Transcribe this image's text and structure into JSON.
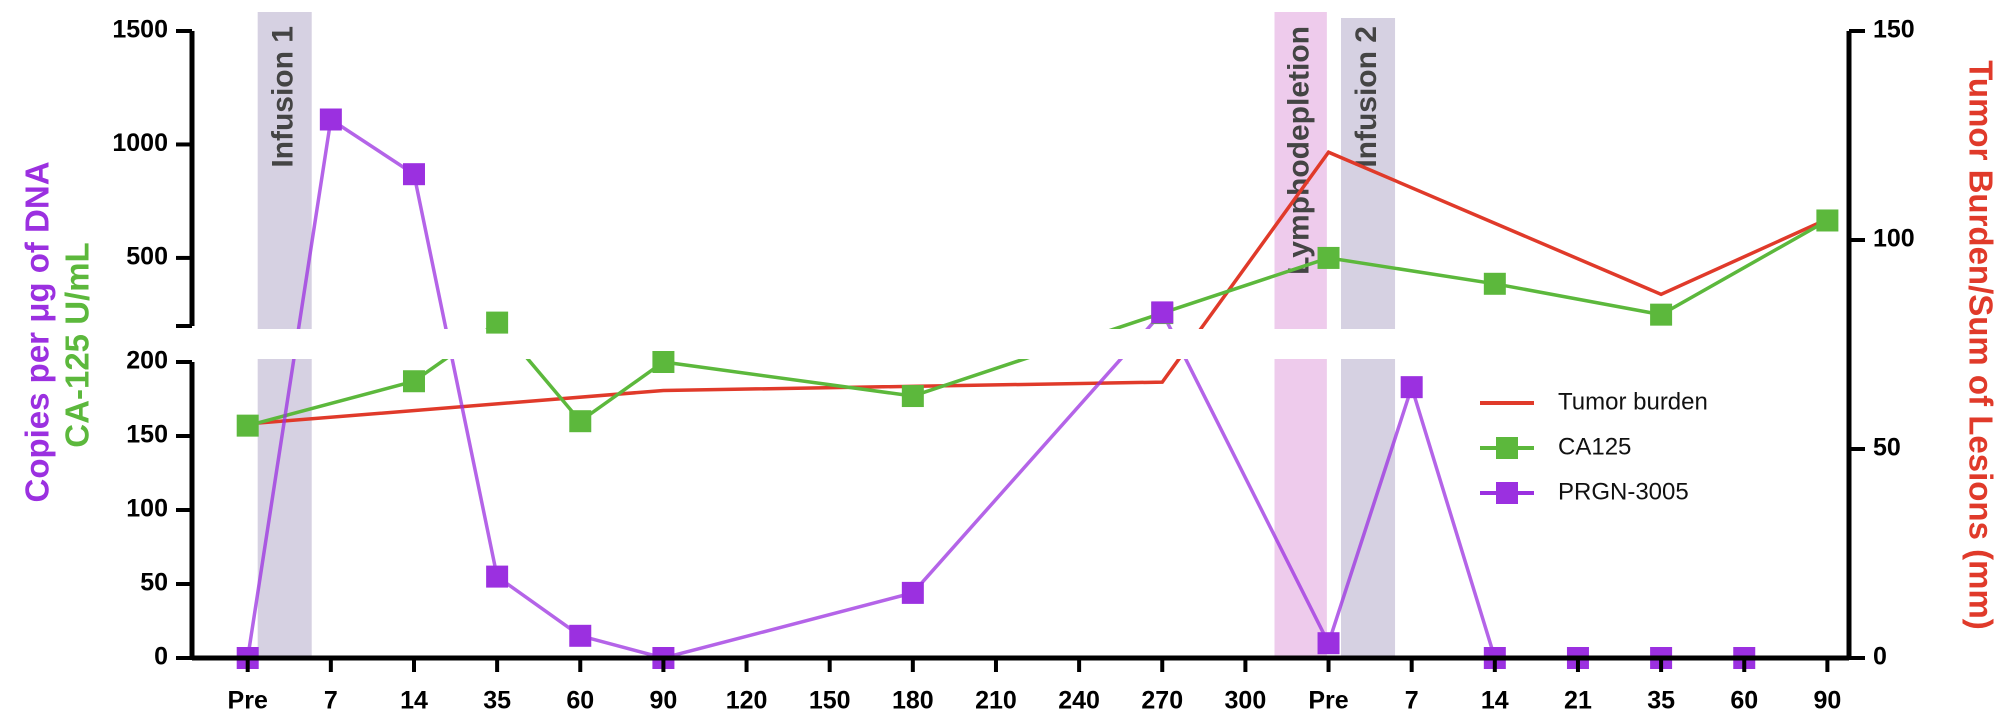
{
  "chart_data": {
    "type": "line",
    "y_label_1": "Copies per μg of DNA",
    "y_label_2": "CA-125 U/mL",
    "y2_label": "Tumor Burden/Sum of Lesions (mm)",
    "xlim": [
      -0.67,
      19.26
    ],
    "xticks": [
      {
        "value": 0,
        "label": "Pre"
      },
      {
        "value": 1,
        "label": "7"
      },
      {
        "value": 2,
        "label": "14"
      },
      {
        "value": 3,
        "label": "35"
      },
      {
        "value": 4,
        "label": "60"
      },
      {
        "value": 5,
        "label": "90"
      },
      {
        "value": 6,
        "label": "120"
      },
      {
        "value": 7,
        "label": "150"
      },
      {
        "value": 8,
        "label": "180"
      },
      {
        "value": 9,
        "label": "210"
      },
      {
        "value": 10,
        "label": "240"
      },
      {
        "value": 11,
        "label": "270"
      },
      {
        "value": 12,
        "label": "300"
      },
      {
        "value": 13,
        "label": "Pre"
      },
      {
        "value": 14,
        "label": "7"
      },
      {
        "value": 15,
        "label": "14"
      },
      {
        "value": 16,
        "label": "21"
      },
      {
        "value": 17,
        "label": "35"
      },
      {
        "value": 18,
        "label": "60"
      },
      {
        "value": 19,
        "label": "90"
      }
    ],
    "y_segments": [
      {
        "ylim": [
          0,
          200
        ],
        "yticks": [
          0,
          50,
          100,
          150,
          200
        ]
      },
      {
        "ylim": [
          200,
          1500
        ],
        "yticks": [
          500,
          1000,
          1500
        ]
      }
    ],
    "y2lim": [
      0,
      150
    ],
    "y2ticks": [
      0,
      50,
      100,
      150
    ],
    "bands": [
      {
        "label": "Infusion 1",
        "x": [
          0.12,
          0.77
        ],
        "color": "#d6d1e2"
      },
      {
        "label": "Lymphodepletion",
        "x": [
          12.35,
          12.98
        ],
        "color": "#eecbec"
      },
      {
        "label": "Infusion 2",
        "x": [
          13.15,
          13.8
        ],
        "color": "#d6d1e2"
      }
    ],
    "series": [
      {
        "name": "Tumor burden",
        "color": "#e03a2a",
        "axis": "y2",
        "marker": false,
        "x": [
          0,
          5,
          11,
          13,
          17,
          19
        ],
        "values": [
          56,
          64,
          66,
          121,
          87,
          105
        ]
      },
      {
        "name": "CA125",
        "color": "#5cb83c",
        "marker": true,
        "x": [
          0,
          2,
          3,
          4,
          5,
          8,
          11,
          13,
          15,
          17,
          19
        ],
        "values": [
          157,
          187,
          215,
          160,
          200,
          177,
          257,
          500,
          386,
          250,
          665
        ]
      },
      {
        "name": "PRGN-3005",
        "color": "#9b30e0",
        "marker": true,
        "x": [
          0,
          1,
          2,
          3,
          4,
          5,
          8,
          11,
          13,
          14,
          15,
          16,
          17,
          18
        ],
        "values": [
          0,
          1110,
          869,
          55,
          15,
          0,
          44,
          260,
          10,
          183,
          0,
          0,
          0,
          0
        ]
      }
    ]
  }
}
